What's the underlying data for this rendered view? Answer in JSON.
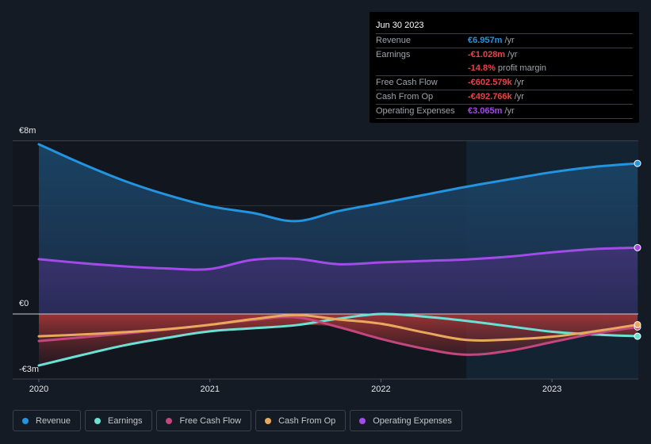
{
  "tooltip": {
    "date": "Jun 30 2023",
    "rows": [
      {
        "label": "Revenue",
        "value": "€6.957m",
        "unit": " /yr",
        "color": "#2394df"
      },
      {
        "label": "Earnings",
        "value": "-€1.028m",
        "unit": " /yr",
        "color": "#e64545"
      },
      {
        "label": "",
        "value": "-14.8%",
        "unit": " profit margin",
        "color": "#e64545"
      },
      {
        "label": "Free Cash Flow",
        "value": "-€602.579k",
        "unit": " /yr",
        "color": "#e64545"
      },
      {
        "label": "Cash From Op",
        "value": "-€492.766k",
        "unit": " /yr",
        "color": "#e64545"
      },
      {
        "label": "Operating Expenses",
        "value": "€3.065m",
        "unit": " /yr",
        "color": "#a24be8"
      }
    ]
  },
  "legend": [
    {
      "label": "Revenue",
      "color": "#2394df"
    },
    {
      "label": "Earnings",
      "color": "#6ce0d4"
    },
    {
      "label": "Free Cash Flow",
      "color": "#c2477f"
    },
    {
      "label": "Cash From Op",
      "color": "#e9a95c"
    },
    {
      "label": "Operating Expenses",
      "color": "#a24be8"
    }
  ],
  "chart_data": {
    "type": "area",
    "title": "",
    "xlabel": "",
    "ylabel": "",
    "x_ticks": [
      "2020",
      "2021",
      "2022",
      "2023"
    ],
    "y_ticks": [
      "€8m",
      "€0",
      "-€3m"
    ],
    "y_tick_values": [
      8,
      0,
      -3
    ],
    "xlim": [
      2020.0,
      2023.5
    ],
    "ylim": [
      -3,
      8
    ],
    "units": "€m",
    "grid": true,
    "highlight_from": 2022.5,
    "legend_position": "bottom",
    "x": [
      2020.0,
      2020.25,
      2020.5,
      2020.75,
      2021.0,
      2021.25,
      2021.5,
      2021.75,
      2022.0,
      2022.25,
      2022.5,
      2022.75,
      2023.0,
      2023.25,
      2023.5
    ],
    "series": [
      {
        "name": "Revenue",
        "color": "#2394df",
        "values": [
          7.84,
          6.95,
          6.15,
          5.5,
          4.98,
          4.67,
          4.29,
          4.75,
          5.12,
          5.5,
          5.88,
          6.22,
          6.55,
          6.8,
          6.957
        ]
      },
      {
        "name": "Earnings",
        "color": "#6ce0d4",
        "values": [
          -2.38,
          -1.9,
          -1.45,
          -1.1,
          -0.8,
          -0.66,
          -0.52,
          -0.22,
          0.0,
          -0.12,
          -0.32,
          -0.57,
          -0.82,
          -0.95,
          -1.028
        ]
      },
      {
        "name": "Free Cash Flow",
        "color": "#c2477f",
        "values": [
          -1.25,
          -1.08,
          -0.9,
          -0.72,
          -0.5,
          -0.28,
          -0.15,
          -0.6,
          -1.15,
          -1.6,
          -1.88,
          -1.7,
          -1.3,
          -0.9,
          -0.603
        ]
      },
      {
        "name": "Cash From Op",
        "color": "#e9a95c",
        "values": [
          -1.03,
          -0.95,
          -0.84,
          -0.7,
          -0.5,
          -0.24,
          -0.05,
          -0.25,
          -0.45,
          -0.85,
          -1.2,
          -1.18,
          -1.05,
          -0.8,
          -0.493
        ]
      },
      {
        "name": "Operating Expenses",
        "color": "#a24be8",
        "values": [
          2.53,
          2.35,
          2.2,
          2.1,
          2.08,
          2.5,
          2.55,
          2.3,
          2.38,
          2.45,
          2.52,
          2.65,
          2.85,
          3.0,
          3.065
        ]
      }
    ]
  }
}
